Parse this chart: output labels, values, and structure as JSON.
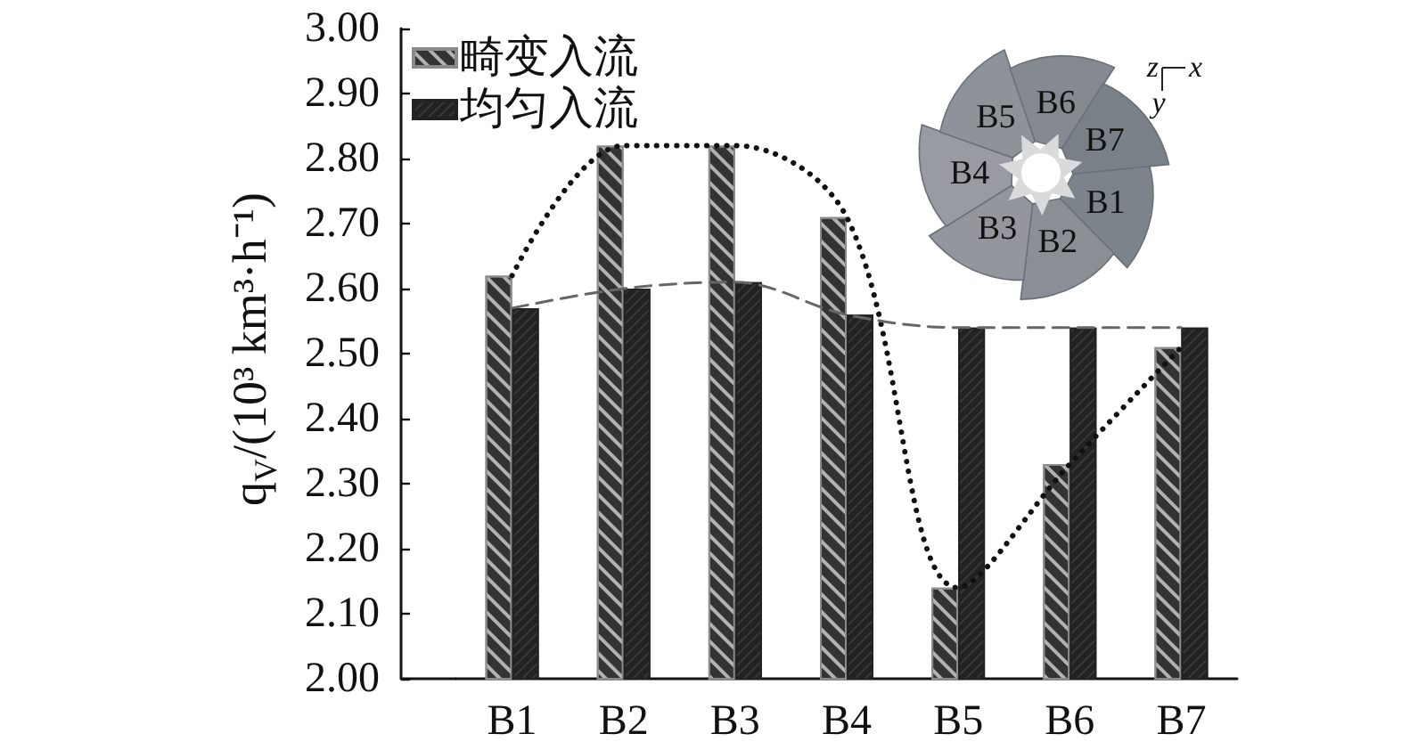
{
  "chart_data": {
    "type": "bar",
    "ylabel": "q$_{V}$/(10³ km³·h⁻¹)",
    "categories": [
      "B1",
      "B2",
      "B3",
      "B4",
      "B5",
      "B6",
      "B7"
    ],
    "series": [
      {
        "name": "畸变入流",
        "color": "#333333",
        "values": [
          2.62,
          2.82,
          2.82,
          2.71,
          2.14,
          2.33,
          2.51
        ]
      },
      {
        "name": "均匀入流",
        "color": "#222222",
        "values": [
          2.57,
          2.6,
          2.61,
          2.56,
          2.54,
          2.54,
          2.54
        ]
      },
      {
        "type": "line",
        "color": "#111111",
        "line_style": "dotted",
        "values": [
          2.62,
          2.82,
          2.82,
          2.71,
          2.14,
          2.33,
          2.51
        ]
      },
      {
        "type": "line",
        "color": "#666666",
        "line_style": "dashed",
        "values": [
          2.57,
          2.6,
          2.61,
          2.56,
          2.54,
          2.54,
          2.54
        ]
      }
    ],
    "ylim": [
      2,
      3
    ],
    "yticks": [
      {
        "value": 2,
        "label": "2.00"
      },
      {
        "value": 2.1,
        "label": "2.10"
      },
      {
        "value": 2.2,
        "label": "2.20"
      },
      {
        "value": 2.3,
        "label": "2.30"
      },
      {
        "value": 2.4,
        "label": "2.40"
      },
      {
        "value": 2.5,
        "label": "2.50"
      },
      {
        "value": 2.6,
        "label": "2.60"
      },
      {
        "value": 2.7,
        "label": "2.70"
      },
      {
        "value": 2.8,
        "label": "2.80"
      },
      {
        "value": 2.9,
        "label": "2.90"
      },
      {
        "value": 3,
        "label": "3.00"
      }
    ],
    "legend": "top left",
    "annotations": [
      "z",
      "x",
      "y"
    ]
  }
}
